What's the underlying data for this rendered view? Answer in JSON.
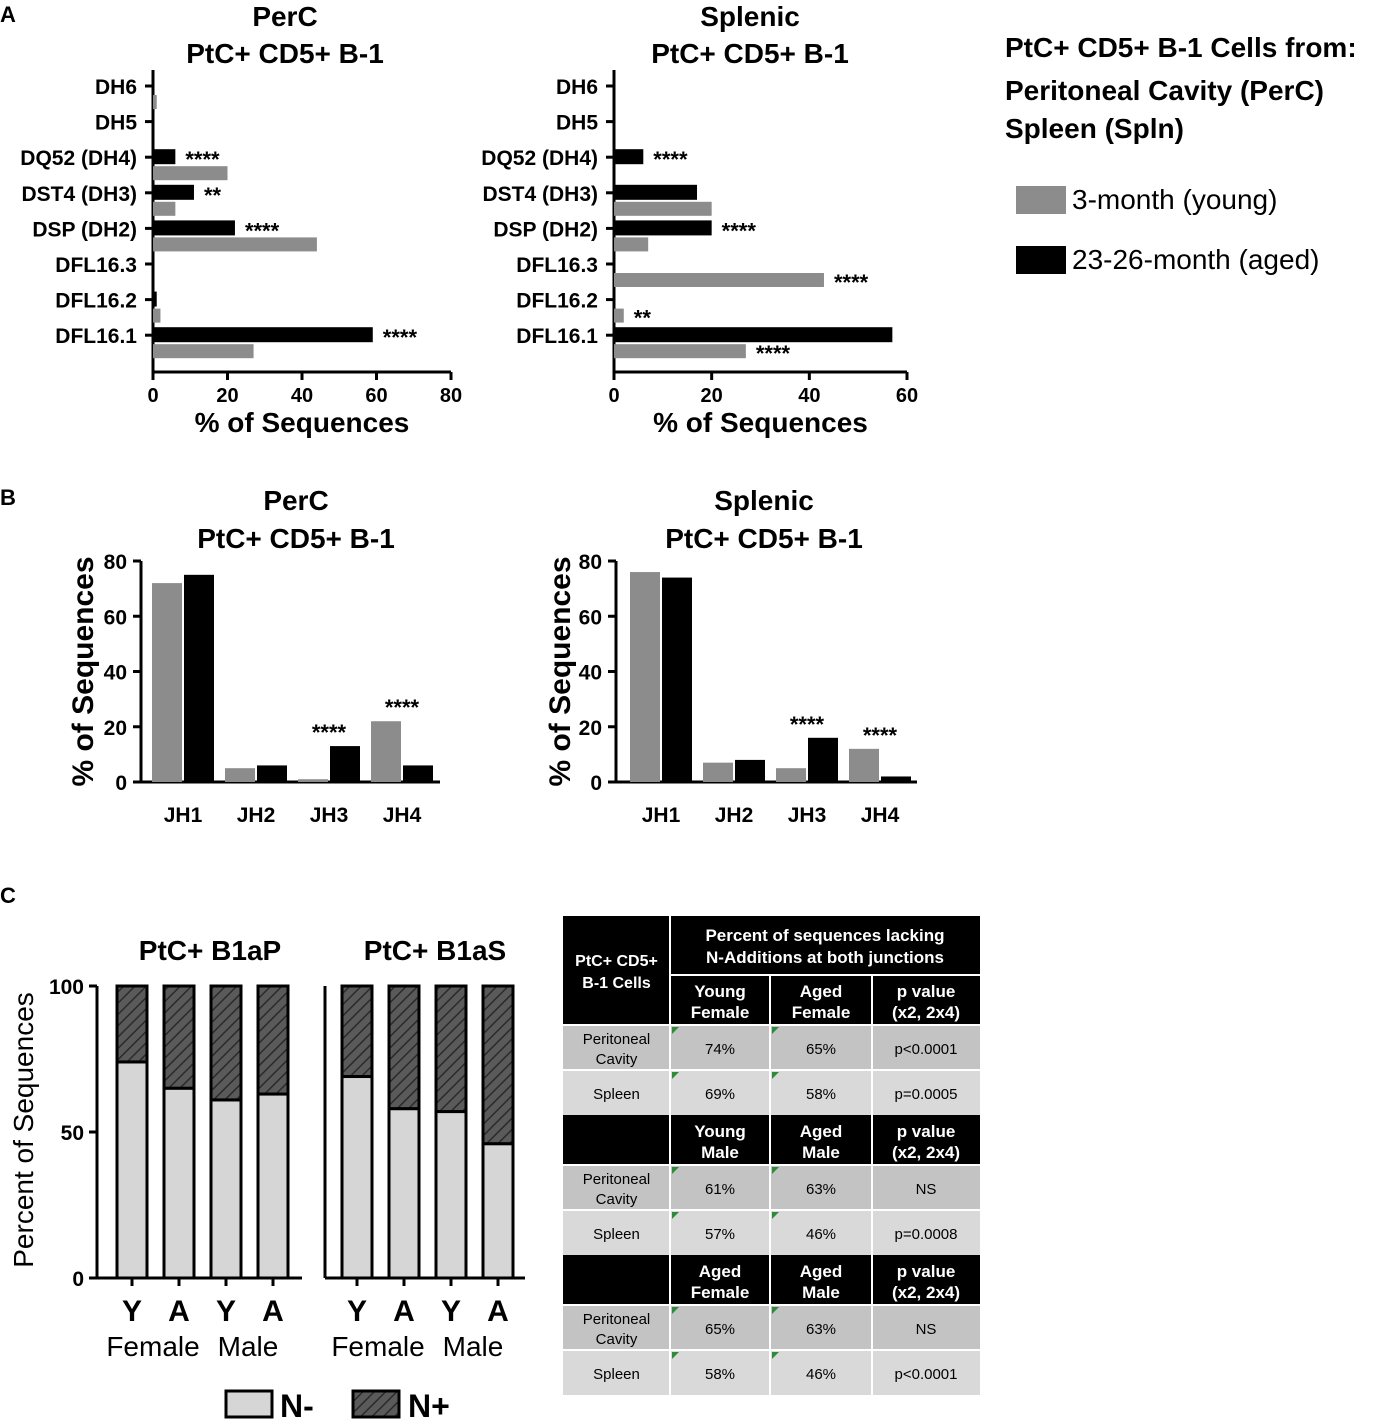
{
  "panel_labels": [
    "A",
    "B",
    "C"
  ],
  "legend_A": {
    "title_lines": [
      "PtC+ CD5+ B-1 Cells from:",
      "Peritoneal Cavity (PerC)",
      "Spleen (Spln)"
    ],
    "items": [
      {
        "label": "3-month (young)",
        "color": "#8c8c8c"
      },
      {
        "label": "23-26-month (aged)",
        "color": "#000000"
      }
    ]
  },
  "legend_C": {
    "items": [
      {
        "label": "N-",
        "pattern": "solid-light"
      },
      {
        "label": "N+",
        "pattern": "hatched-dark"
      }
    ]
  },
  "colors": {
    "young": "#8c8c8c",
    "aged": "#000000",
    "nminus": "#d6d6d6",
    "nplus": "#5a5a5a"
  },
  "chart_data": [
    {
      "id": "A-left",
      "type": "bar",
      "orientation": "horizontal",
      "title_lines": [
        "PerC",
        "PtC+ CD5+ B-1"
      ],
      "xlabel": "% of Sequences",
      "xlim": [
        0,
        80
      ],
      "xticks": [
        0,
        20,
        40,
        60,
        80
      ],
      "categories": [
        "DH6",
        "DH5",
        "DQ52 (DH4)",
        "DST4 (DH3)",
        "DSP (DH2)",
        "DFL16.3",
        "DFL16.2",
        "DFL16.1"
      ],
      "series": [
        {
          "name": "23-26-month (aged)",
          "values": [
            0,
            0,
            6,
            11,
            22,
            0,
            1,
            59
          ]
        },
        {
          "name": "3-month (young)",
          "values": [
            1,
            0,
            20,
            6,
            44,
            0,
            2,
            27
          ]
        }
      ],
      "annotations": [
        {
          "category": "DQ52 (DH4)",
          "text": "****"
        },
        {
          "category": "DST4 (DH3)",
          "text": "**"
        },
        {
          "category": "DSP (DH2)",
          "text": "****"
        },
        {
          "category": "DFL16.1",
          "text": "****"
        }
      ]
    },
    {
      "id": "A-right",
      "type": "bar",
      "orientation": "horizontal",
      "title_lines": [
        "Splenic",
        "PtC+ CD5+ B-1"
      ],
      "xlabel": "% of Sequences",
      "xlim": [
        0,
        60
      ],
      "xticks": [
        0,
        20,
        40,
        60
      ],
      "categories": [
        "DH6",
        "DH5",
        "DQ52 (DH4)",
        "DST4 (DH3)",
        "DSP (DH2)",
        "DFL16.3",
        "DFL16.2",
        "DFL16.1"
      ],
      "series": [
        {
          "name": "23-26-month (aged)",
          "values": [
            0,
            0,
            6,
            17,
            20,
            0,
            0,
            57
          ]
        },
        {
          "name": "3-month (young)",
          "values": [
            0,
            0,
            0,
            20,
            7,
            43,
            2,
            27
          ]
        }
      ],
      "annotations": [
        {
          "category": "DQ52 (DH4)",
          "text": "****",
          "series": 0
        },
        {
          "category": "DSP (DH2)",
          "text": "****",
          "series": 0
        },
        {
          "category": "DFL16.3",
          "text": "****",
          "series": 1
        },
        {
          "category": "DFL16.2",
          "text": "**",
          "series": 1
        },
        {
          "category": "DFL16.1",
          "text": "****",
          "series": 1
        }
      ]
    },
    {
      "id": "B-left",
      "type": "bar",
      "orientation": "vertical",
      "title_lines": [
        "PerC",
        "PtC+ CD5+ B-1"
      ],
      "ylabel": "% of Sequences",
      "ylim": [
        0,
        80
      ],
      "yticks": [
        0,
        20,
        40,
        60,
        80
      ],
      "categories": [
        "JH1",
        "JH2",
        "JH3",
        "JH4"
      ],
      "series": [
        {
          "name": "3-month (young)",
          "values": [
            72,
            5,
            1,
            22
          ]
        },
        {
          "name": "23-26-month (aged)",
          "values": [
            75,
            6,
            13,
            6
          ]
        }
      ],
      "annotations": [
        {
          "category": "JH3",
          "text": "****"
        },
        {
          "category": "JH4",
          "text": "****"
        }
      ]
    },
    {
      "id": "B-right",
      "type": "bar",
      "orientation": "vertical",
      "title_lines": [
        "Splenic",
        "PtC+ CD5+ B-1"
      ],
      "ylabel": "% of Sequences",
      "ylim": [
        0,
        80
      ],
      "yticks": [
        0,
        20,
        40,
        60,
        80
      ],
      "categories": [
        "JH1",
        "JH2",
        "JH3",
        "JH4"
      ],
      "series": [
        {
          "name": "3-month (young)",
          "values": [
            76,
            7,
            5,
            12
          ]
        },
        {
          "name": "23-26-month (aged)",
          "values": [
            74,
            8,
            16,
            2
          ]
        }
      ],
      "annotations": [
        {
          "category": "JH3",
          "text": "****"
        },
        {
          "category": "JH4",
          "text": "****"
        }
      ]
    },
    {
      "id": "C-stacked",
      "type": "bar",
      "stacked": true,
      "ylabel": "Percent of Sequences",
      "ylim": [
        0,
        100
      ],
      "yticks": [
        0,
        50,
        100
      ],
      "groups": [
        {
          "title": "PtC+ B1aP",
          "categories": [
            "Y",
            "A",
            "Y",
            "A"
          ],
          "sexes": [
            "Female",
            "Male"
          ],
          "n_minus": [
            74,
            65,
            61,
            63
          ],
          "n_plus": [
            26,
            35,
            39,
            37
          ]
        },
        {
          "title": "PtC+ B1aS",
          "categories": [
            "Y",
            "A",
            "Y",
            "A"
          ],
          "sexes": [
            "Female",
            "Male"
          ],
          "n_minus": [
            69,
            58,
            57,
            46
          ],
          "n_plus": [
            31,
            42,
            43,
            54
          ]
        }
      ]
    }
  ],
  "table_C": {
    "corner": [
      "PtC+ CD5+",
      "B-1 Cells"
    ],
    "header": [
      "Percent of sequences lacking",
      "N-Additions at both junctions"
    ],
    "sections": [
      {
        "cols": [
          [
            "Young",
            "Female"
          ],
          [
            "Aged",
            "Female"
          ],
          [
            "p value",
            "(x2, 2x4)"
          ]
        ],
        "rows": [
          {
            "label": [
              "Peritoneal",
              "Cavity"
            ],
            "values": [
              "74%",
              "65%",
              "p<0.0001"
            ]
          },
          {
            "label": [
              "Spleen"
            ],
            "values": [
              "69%",
              "58%",
              "p=0.0005"
            ]
          }
        ]
      },
      {
        "cols": [
          [
            "Young",
            "Male"
          ],
          [
            "Aged",
            "Male"
          ],
          [
            "p value",
            "(x2, 2x4)"
          ]
        ],
        "rows": [
          {
            "label": [
              "Peritoneal",
              "Cavity"
            ],
            "values": [
              "61%",
              "63%",
              "NS"
            ]
          },
          {
            "label": [
              "Spleen"
            ],
            "values": [
              "57%",
              "46%",
              "p=0.0008"
            ]
          }
        ]
      },
      {
        "cols": [
          [
            "Aged",
            "Female"
          ],
          [
            "Aged",
            "Male"
          ],
          [
            "p value",
            "(x2, 2x4)"
          ]
        ],
        "rows": [
          {
            "label": [
              "Peritoneal",
              "Cavity"
            ],
            "values": [
              "65%",
              "63%",
              "NS"
            ]
          },
          {
            "label": [
              "Spleen"
            ],
            "values": [
              "58%",
              "46%",
              "p<0.0001"
            ]
          }
        ]
      }
    ]
  }
}
